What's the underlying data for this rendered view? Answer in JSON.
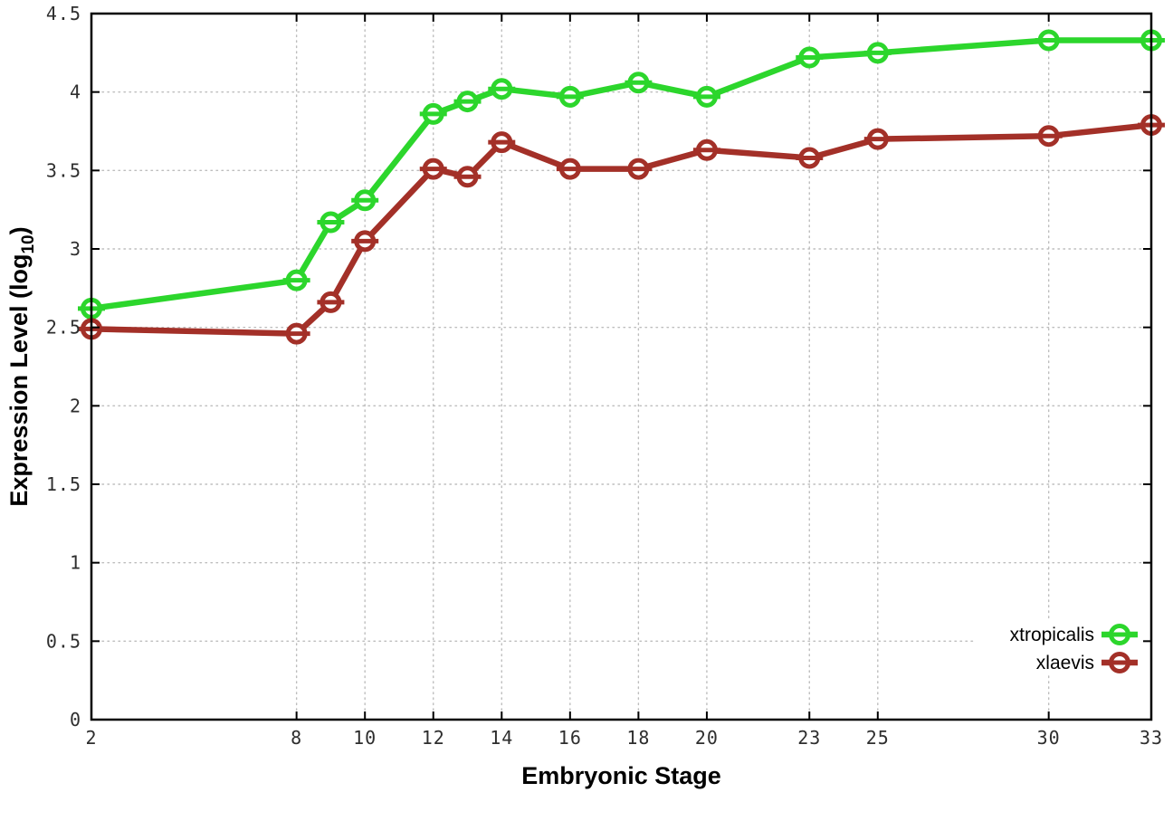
{
  "chart_data": {
    "type": "line",
    "title": "",
    "xlabel": "Embryonic Stage",
    "ylabel": "Expression Level (log10)",
    "ylabel_parts": {
      "main": "Expression Level (log",
      "sub": "10",
      "close": ")"
    },
    "x": [
      2,
      8,
      9,
      10,
      12,
      13,
      14,
      16,
      18,
      20,
      23,
      25,
      30,
      33
    ],
    "series": [
      {
        "name": "xtropicalis",
        "color": "#2cd62c",
        "values": [
          2.62,
          2.8,
          3.17,
          3.31,
          3.86,
          3.94,
          4.02,
          3.97,
          4.06,
          3.97,
          4.22,
          4.25,
          4.33,
          4.33
        ]
      },
      {
        "name": "xlaevis",
        "color": "#a33028",
        "values": [
          2.49,
          2.46,
          2.66,
          3.05,
          3.51,
          3.46,
          3.68,
          3.51,
          3.51,
          3.63,
          3.58,
          3.7,
          3.72,
          3.79
        ]
      }
    ],
    "xlim": [
      2,
      33
    ],
    "ylim": [
      0,
      4.5
    ],
    "xticks": [
      2,
      8,
      10,
      12,
      14,
      16,
      18,
      20,
      23,
      25,
      30,
      33
    ],
    "yticks": [
      0,
      0.5,
      1,
      1.5,
      2,
      2.5,
      3,
      3.5,
      4,
      4.5
    ],
    "grid": true,
    "grid_color": "#bdbdbd",
    "axis_color": "#000000",
    "background": "#ffffff",
    "legend_position": "bottom-right",
    "marker": "open-circle-with-horizontal-bar"
  }
}
